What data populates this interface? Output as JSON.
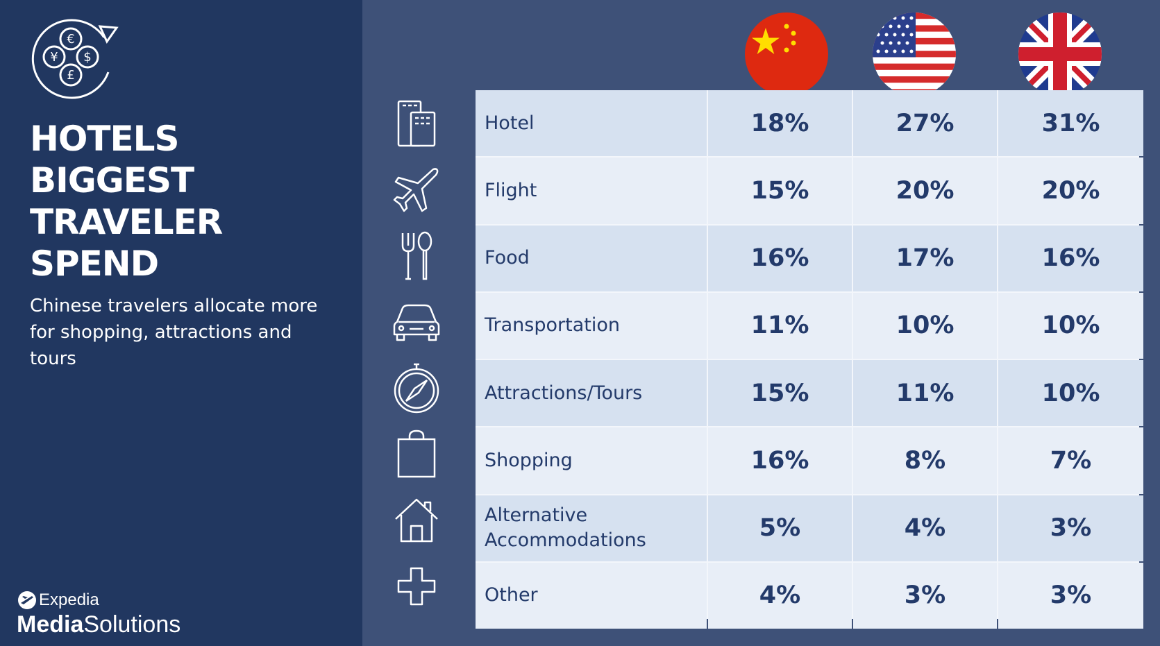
{
  "headline": {
    "lines": [
      "HOTELS",
      "BIGGEST",
      "TRAVELER",
      "SPEND"
    ]
  },
  "subtitle": "Chinese travelers allocate more for shopping, attractions and tours",
  "brand": {
    "top": "Expedia",
    "bold": "Media",
    "light": "Solutions"
  },
  "logo_icon": "currency-exchange-icon",
  "columns": [
    "China",
    "United States",
    "United Kingdom"
  ],
  "flags": [
    "china-flag-icon",
    "usa-flag-icon",
    "uk-flag-icon"
  ],
  "rows": [
    {
      "icon": "hotel-building-icon",
      "label": "Hotel",
      "values": [
        "18%",
        "27%",
        "31%"
      ]
    },
    {
      "icon": "airplane-icon",
      "label": "Flight",
      "values": [
        "15%",
        "20%",
        "20%"
      ]
    },
    {
      "icon": "fork-spoon-icon",
      "label": "Food",
      "values": [
        "16%",
        "17%",
        "16%"
      ]
    },
    {
      "icon": "car-icon",
      "label": "Transportation",
      "values": [
        "11%",
        "10%",
        "10%"
      ]
    },
    {
      "icon": "compass-icon",
      "label": "Attractions/Tours",
      "values": [
        "15%",
        "11%",
        "10%"
      ]
    },
    {
      "icon": "shopping-bag-icon",
      "label": "Shopping",
      "values": [
        "16%",
        "8%",
        "7%"
      ]
    },
    {
      "icon": "house-icon",
      "label": "Alternative Accommodations",
      "values": [
        "5%",
        "4%",
        "3%"
      ]
    },
    {
      "icon": "plus-icon",
      "label": "Other",
      "values": [
        "4%",
        "3%",
        "3%"
      ]
    }
  ],
  "colors": {
    "panel": "#213760",
    "background": "#3e5178",
    "row_dark": "#d6e1f0",
    "row_light": "#e8eef7",
    "text": "#233a6a"
  }
}
